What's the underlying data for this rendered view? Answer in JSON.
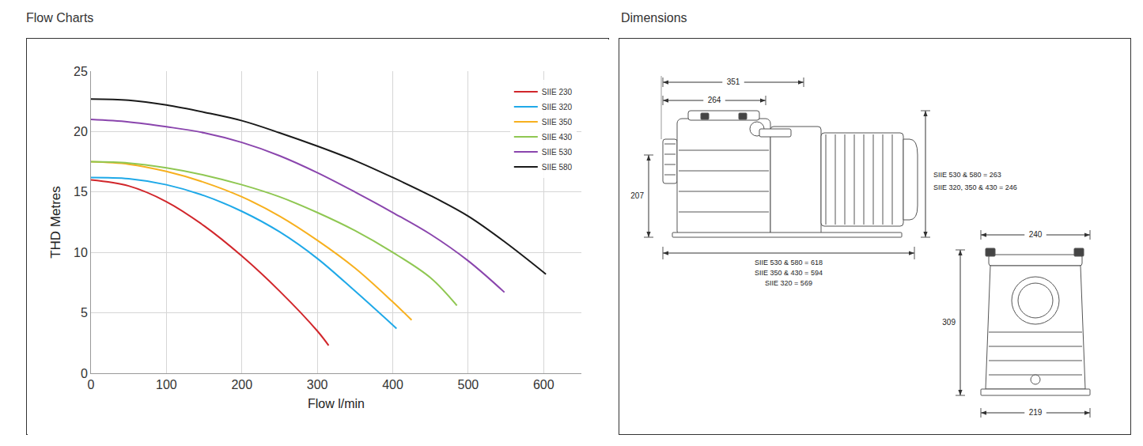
{
  "chart_data": {
    "type": "line",
    "title": "Flow Charts",
    "x_label": "Flow l/min",
    "y_label": "THD Metres",
    "xlim": [
      0,
      650
    ],
    "xticks": [
      0,
      100,
      200,
      300,
      400,
      500,
      600
    ],
    "ylim": [
      0,
      25
    ],
    "yticks": [
      0,
      5,
      10,
      15,
      20,
      25
    ],
    "grid": true,
    "legend": "upper right",
    "series": [
      {
        "name": "SIIE 230",
        "color": "#d1262b",
        "x": [
          0,
          50,
          100,
          150,
          200,
          250,
          300,
          315
        ],
        "values": [
          16.0,
          15.5,
          14.2,
          12.2,
          9.7,
          6.8,
          3.5,
          2.3
        ]
      },
      {
        "name": "SIIE 320",
        "color": "#1fa9e8",
        "x": [
          0,
          50,
          100,
          150,
          200,
          250,
          300,
          350,
          405
        ],
        "values": [
          16.2,
          16.1,
          15.6,
          14.7,
          13.4,
          11.7,
          9.5,
          6.8,
          3.7
        ]
      },
      {
        "name": "SIIE 350",
        "color": "#f7b01e",
        "x": [
          0,
          50,
          100,
          150,
          200,
          250,
          300,
          350,
          400,
          425
        ],
        "values": [
          17.5,
          17.3,
          16.7,
          15.8,
          14.6,
          13.0,
          11.0,
          8.7,
          5.9,
          4.4
        ]
      },
      {
        "name": "SIIE 430",
        "color": "#8fc752",
        "x": [
          0,
          50,
          100,
          150,
          200,
          250,
          300,
          350,
          400,
          450,
          485
        ],
        "values": [
          17.5,
          17.4,
          17.0,
          16.4,
          15.6,
          14.6,
          13.3,
          11.8,
          10.0,
          7.9,
          5.6
        ]
      },
      {
        "name": "SIIE 530",
        "color": "#8a45ad",
        "x": [
          0,
          50,
          100,
          150,
          200,
          250,
          300,
          350,
          400,
          450,
          500,
          548
        ],
        "values": [
          21.0,
          20.8,
          20.4,
          19.9,
          19.1,
          18.0,
          16.6,
          15.0,
          13.3,
          11.5,
          9.3,
          6.7
        ]
      },
      {
        "name": "SIIE 580",
        "color": "#1a1a1a",
        "x": [
          0,
          50,
          100,
          150,
          200,
          250,
          300,
          350,
          400,
          450,
          500,
          550,
          603
        ],
        "values": [
          22.7,
          22.6,
          22.2,
          21.6,
          20.9,
          19.9,
          18.8,
          17.6,
          16.2,
          14.7,
          13.0,
          10.8,
          8.2
        ]
      }
    ]
  },
  "dimensions": {
    "title": "Dimensions",
    "side_view": {
      "width_1": 351,
      "width_2": 264,
      "inlet_height": 207,
      "heights": [
        "SIIE 530 & 580 = 263",
        "SIIE 320, 350 & 430 = 246"
      ],
      "lengths": [
        "SIIE 530 & 580 = 618",
        "SIIE 350 & 430 = 594",
        "SIIE 320 = 569"
      ]
    },
    "front_view": {
      "top_width": 240,
      "height": 309,
      "base_width": 219
    }
  }
}
